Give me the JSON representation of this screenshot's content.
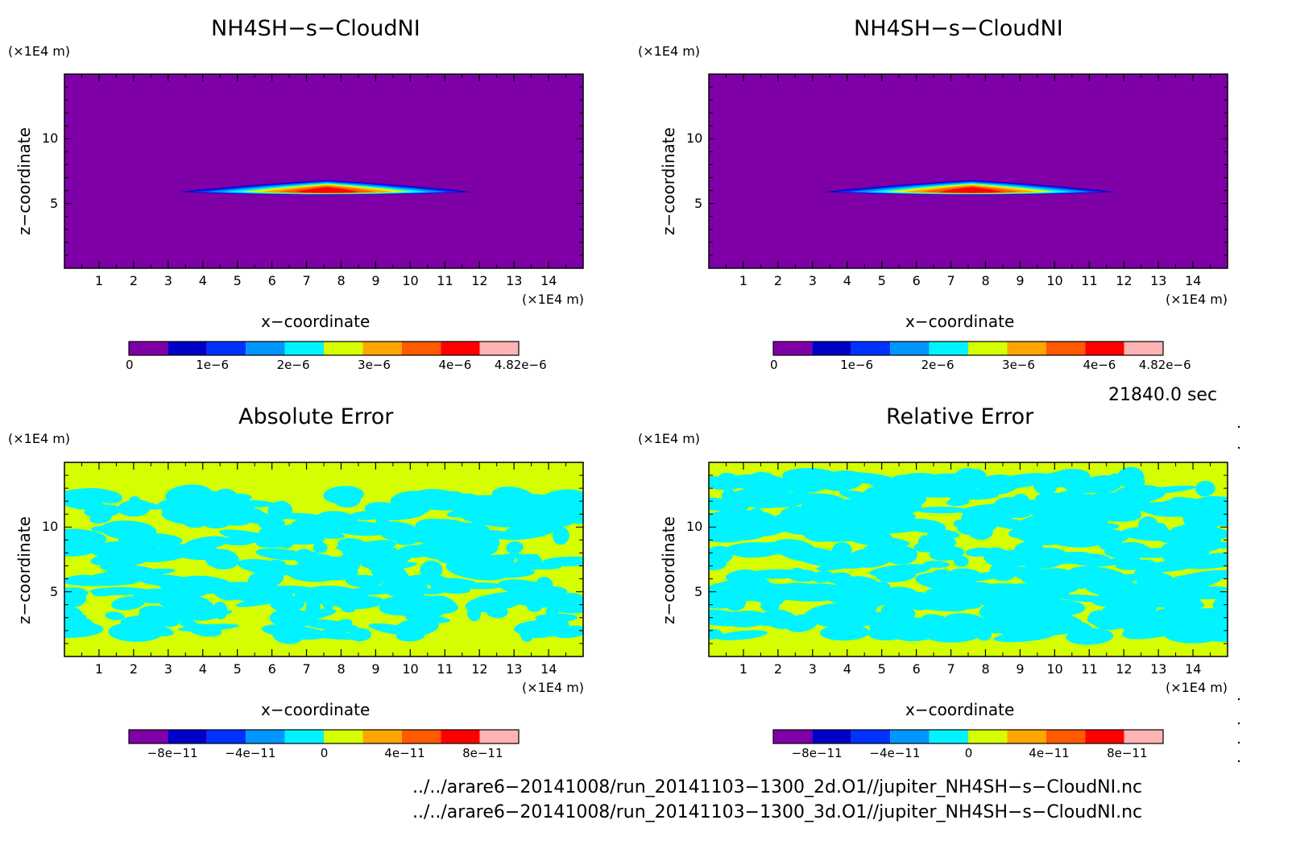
{
  "panels": [
    {
      "id": "top-left",
      "title": "NH4SH−s−CloudNI",
      "field": "cloud",
      "colorbar_labels": [
        "0",
        "1e−6",
        "2e−6",
        "3e−6",
        "4e−6",
        "4.82e−6"
      ]
    },
    {
      "id": "top-right",
      "title": "NH4SH−s−CloudNI",
      "field": "cloud",
      "colorbar_labels": [
        "0",
        "1e−6",
        "2e−6",
        "3e−6",
        "4e−6",
        "4.82e−6"
      ]
    },
    {
      "id": "bottom-left",
      "title": "Absolute Error",
      "field": "abs_error",
      "colorbar_labels": [
        "−8e−11",
        "−4e−11",
        "0",
        "4e−11",
        "8e−11"
      ]
    },
    {
      "id": "bottom-right",
      "title": "Relative Error",
      "field": "rel_error",
      "colorbar_labels": [
        "−8e−11",
        "−4e−11",
        "0",
        "4e−11",
        "8e−11"
      ]
    }
  ],
  "axis": {
    "unit_label": "(×1E4 m)",
    "xlabel": "x−coordinate",
    "ylabel": "z−coordinate",
    "x_ticks": [
      "1",
      "2",
      "3",
      "4",
      "5",
      "6",
      "7",
      "8",
      "9",
      "10",
      "11",
      "12",
      "13",
      "14"
    ],
    "y_ticks": [
      "5",
      "10"
    ]
  },
  "time_label": "21840.0 sec",
  "files": [
    "../../arare6−20141008/run_20141103−1300_2d.O1//jupiter_NH4SH−s−CloudNI.nc",
    "../../arare6−20141008/run_20141103−1300_3d.O1//jupiter_NH4SH−s−CloudNI.nc"
  ],
  "colors": {
    "background_cloud": "#7f00a6",
    "error_fill": "#d5ff00",
    "error_spots": "#00f3ff",
    "colorbar": [
      "#7f00a6",
      "#0000c8",
      "#0032ff",
      "#0096ff",
      "#00f3ff",
      "#d5ff00",
      "#ffa500",
      "#ff5a00",
      "#ff0000",
      "#ffb4b4"
    ]
  },
  "chart_data": [
    {
      "type": "heatmap",
      "title": "NH4SH−s−CloudNI",
      "xlabel": "x−coordinate",
      "ylabel": "z−coordinate",
      "x_unit": "(×1E4 m)",
      "y_unit": "(×1E4 m)",
      "xlim": [
        0,
        15
      ],
      "ylim": [
        0,
        15
      ],
      "value_range": [
        0,
        4.82e-06
      ],
      "colorbar_ticks": [
        0,
        1e-06,
        2e-06,
        3e-06,
        4e-06,
        4.82e-06
      ],
      "cloud_layer": {
        "x_extent": [
          3.3,
          11.8
        ],
        "z_base": 5.9,
        "z_top": 6.8,
        "peak_x": 7.6
      }
    },
    {
      "type": "heatmap",
      "title": "NH4SH−s−CloudNI",
      "xlabel": "x−coordinate",
      "ylabel": "z−coordinate",
      "x_unit": "(×1E4 m)",
      "y_unit": "(×1E4 m)",
      "xlim": [
        0,
        15
      ],
      "ylim": [
        0,
        15
      ],
      "value_range": [
        0,
        4.82e-06
      ],
      "colorbar_ticks": [
        0,
        1e-06,
        2e-06,
        3e-06,
        4e-06,
        4.82e-06
      ],
      "cloud_layer": {
        "x_extent": [
          3.3,
          11.8
        ],
        "z_base": 5.9,
        "z_top": 6.8,
        "peak_x": 7.6
      }
    },
    {
      "type": "heatmap",
      "title": "Absolute Error",
      "xlabel": "x−coordinate",
      "ylabel": "z−coordinate",
      "xlim": [
        0,
        15
      ],
      "ylim": [
        0,
        15
      ],
      "value_range": [
        -1e-10,
        1e-10
      ],
      "colorbar_ticks": [
        -8e-11,
        -4e-11,
        0,
        4e-11,
        8e-11
      ]
    },
    {
      "type": "heatmap",
      "title": "Relative Error",
      "xlabel": "x−coordinate",
      "ylabel": "z−coordinate",
      "xlim": [
        0,
        15
      ],
      "ylim": [
        0,
        15
      ],
      "value_range": [
        -1e-10,
        1e-10
      ],
      "colorbar_ticks": [
        -8e-11,
        -4e-11,
        0,
        4e-11,
        8e-11
      ]
    }
  ]
}
